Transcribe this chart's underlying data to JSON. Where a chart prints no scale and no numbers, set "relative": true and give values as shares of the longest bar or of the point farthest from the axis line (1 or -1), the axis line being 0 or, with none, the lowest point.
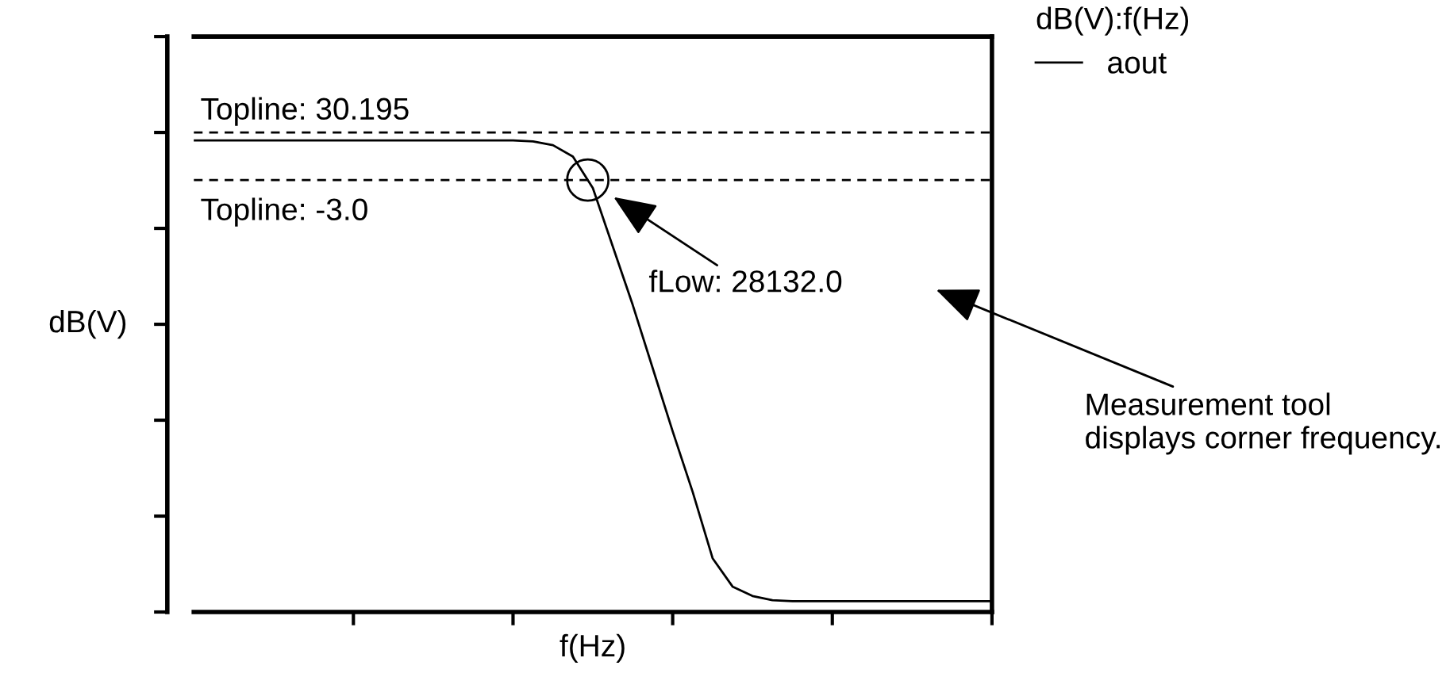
{
  "chart_data": {
    "type": "line",
    "relative": true,
    "xlabel": "f(Hz)",
    "ylabel": "dB(V)",
    "legend_title": "dB(V):f(Hz)",
    "legend": "top right",
    "tick_labels": false,
    "line_style": "solid",
    "categories": [
      null,
      null,
      null,
      null,
      null,
      null,
      null,
      null,
      null,
      null,
      null,
      null,
      null,
      null,
      null,
      null,
      null,
      null,
      null,
      null,
      null,
      null,
      null,
      null,
      null,
      null,
      null,
      null,
      null,
      null,
      null,
      null,
      null,
      null,
      null,
      null,
      null,
      null,
      null,
      null,
      null
    ],
    "series": [
      {
        "name": "aout",
        "color": "#000000",
        "values": [
          1.0,
          1.0,
          1.0,
          1.0,
          1.0,
          1.0,
          1.0,
          1.0,
          1.0,
          1.0,
          1.0,
          1.0,
          1.0,
          1.0,
          1.0,
          1.0,
          1.0,
          0.998,
          0.99,
          0.966,
          0.899,
          0.775,
          0.651,
          0.517,
          0.383,
          0.255,
          0.114,
          0.054,
          0.034,
          0.025,
          0.023,
          0.023,
          0.023,
          0.023,
          0.023,
          0.023,
          0.023,
          0.023,
          0.023,
          0.023,
          0.023
        ]
      }
    ],
    "ref_lines": [
      {
        "axis": "y",
        "value": 1.017,
        "color": "#000000",
        "line_style": "dashed"
      },
      {
        "axis": "y",
        "value": 0.916,
        "color": "#000000",
        "line_style": "dashed"
      }
    ],
    "annotations": [
      "Topline: 30.195",
      "Topline: -3.0",
      "fLow: 28132.0",
      "Measurement tool displays corner frequency."
    ]
  }
}
